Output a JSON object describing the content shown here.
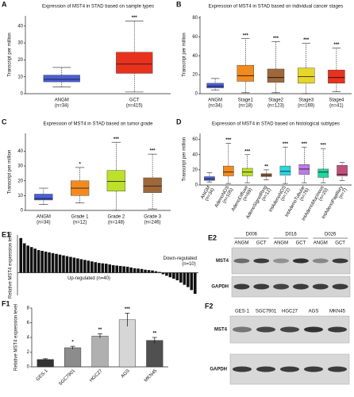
{
  "chart_data": [
    {
      "type": "box",
      "panel": "A",
      "title": "Expression of MST4 in STAD based on sample types",
      "ylabel": "Transcript per million",
      "categories": [
        "ANGM",
        "GCT"
      ],
      "category_notes": [
        "(n=34)",
        "(n=415)"
      ],
      "colors": [
        "#4a5fd6",
        "#e8321e"
      ],
      "boxes": [
        {
          "min": 4,
          "q1": 7,
          "median": 8.5,
          "q3": 11,
          "max": 15.5
        },
        {
          "min": 1,
          "q1": 12,
          "median": 17.5,
          "q3": 24.5,
          "max": 43
        }
      ],
      "significance": [
        null,
        "***"
      ],
      "ylim": [
        0,
        46
      ],
      "yticks": [
        0,
        10,
        20,
        30,
        40
      ]
    },
    {
      "type": "box",
      "panel": "B",
      "title": "Expression of MST4 in STAD based on individual cancer stages",
      "ylabel": "Transcript per million",
      "categories": [
        "ANGM",
        "Stage1",
        "Stage2",
        "Stage3",
        "Stage4"
      ],
      "category_notes": [
        "(n=34)",
        "(n=18)",
        "(n=123)",
        "(n=169)",
        "(n=41)"
      ],
      "colors": [
        "#4a5fd6",
        "#f28a1e",
        "#a0683a",
        "#e6d52a",
        "#e8321e"
      ],
      "boxes": [
        {
          "min": 4,
          "q1": 6,
          "median": 8,
          "q3": 11,
          "max": 16
        },
        {
          "min": 1,
          "q1": 13,
          "median": 19,
          "q3": 30,
          "max": 58
        },
        {
          "min": 1,
          "q1": 12,
          "median": 17,
          "q3": 26,
          "max": 55
        },
        {
          "min": 0,
          "q1": 11,
          "median": 18,
          "q3": 27,
          "max": 53
        },
        {
          "min": 2,
          "q1": 11,
          "median": 17,
          "q3": 25,
          "max": 48
        }
      ],
      "significance": [
        null,
        "***",
        "***",
        "***",
        "***"
      ],
      "ylim": [
        0,
        82
      ],
      "yticks": [
        0,
        20,
        40,
        60,
        80
      ]
    },
    {
      "type": "box",
      "panel": "C",
      "title": "Expression of MST4 in STAD based on tumor grade",
      "ylabel": "Transcript per million",
      "categories": [
        "ANGM",
        "Grade 1",
        "Grade 2",
        "Grade 3"
      ],
      "category_notes": [
        "(n=34)",
        "(n=12)",
        "(n=148)",
        "(n=246)"
      ],
      "colors": [
        "#4a5fd6",
        "#f28a1e",
        "#bde02a",
        "#a0683a"
      ],
      "boxes": [
        {
          "min": 4,
          "q1": 7,
          "median": 8,
          "q3": 11,
          "max": 15
        },
        {
          "min": 5,
          "q1": 10,
          "median": 15,
          "q3": 20,
          "max": 29
        },
        {
          "min": 0,
          "q1": 13,
          "median": 19.5,
          "q3": 27,
          "max": 46
        },
        {
          "min": 1,
          "q1": 12,
          "median": 16.5,
          "q3": 22,
          "max": 38
        }
      ],
      "significance": [
        null,
        "*",
        "***",
        "***"
      ],
      "ylim": [
        0,
        52
      ],
      "yticks": [
        0,
        10,
        20,
        30,
        40
      ]
    },
    {
      "type": "box",
      "panel": "D",
      "title": "Expression of MST4 in STAD based on histological subtypes",
      "ylabel": "Transcript per million",
      "rotated_labels": true,
      "categories": [
        "ANGM",
        "AdenoNOS",
        "AdenoDiffuse",
        "AdenoSignetRing",
        "IntAdenoNOS",
        "IntAdenoTubular",
        "IntAdenoMucinous",
        "IntAdenoPapillary"
      ],
      "category_notes": [
        "(n=34)",
        "(n=105)",
        "(n=69)",
        "(n=12)",
        "(n=72)",
        "(n=76)",
        "(n=20)",
        "(n=7)"
      ],
      "colors": [
        "#4a5fd6",
        "#f28a1e",
        "#bde02a",
        "#a0683a",
        "#2ad6e0",
        "#c07ae8",
        "#20d6a0",
        "#c0507a"
      ],
      "boxes": [
        {
          "min": 4,
          "q1": 6,
          "median": 8,
          "q3": 11,
          "max": 16
        },
        {
          "min": 2,
          "q1": 12,
          "median": 17,
          "q3": 25,
          "max": 55
        },
        {
          "min": 3,
          "q1": 12,
          "median": 17,
          "q3": 22,
          "max": 40
        },
        {
          "min": 7,
          "q1": 11,
          "median": 13,
          "q3": 15,
          "max": 20
        },
        {
          "min": 2,
          "q1": 13,
          "median": 18,
          "q3": 25,
          "max": 50
        },
        {
          "min": 3,
          "q1": 14,
          "median": 21,
          "q3": 27,
          "max": 50
        },
        {
          "min": 3,
          "q1": 10,
          "median": 17,
          "q3": 21,
          "max": 48
        },
        {
          "min": 6,
          "q1": 12,
          "median": 14,
          "q3": 26,
          "max": 30
        }
      ],
      "significance": [
        null,
        "***",
        "***",
        "**",
        "***",
        "***",
        "***",
        null
      ],
      "ylim": [
        0,
        68
      ],
      "yticks": [
        0,
        20,
        40,
        60
      ]
    },
    {
      "type": "waterfall",
      "panel": "E1",
      "ylabel": "Relative MST4 expression level",
      "color": "#111111",
      "values": [
        4.6,
        3.9,
        3.6,
        3.4,
        3.2,
        3.0,
        2.9,
        2.8,
        2.7,
        2.6,
        2.5,
        2.4,
        2.3,
        2.2,
        2.1,
        2.0,
        1.9,
        1.8,
        1.7,
        1.6,
        1.5,
        1.4,
        1.3,
        1.25,
        1.2,
        1.1,
        1.0,
        0.95,
        0.9,
        0.85,
        0.8,
        0.7,
        0.6,
        0.55,
        0.5,
        0.4,
        0.35,
        0.3,
        0.2,
        0.1,
        -0.2,
        -0.4,
        -0.6,
        -0.8,
        -1.0,
        -1.3,
        -1.6,
        -1.9,
        -2.3,
        -2.8
      ],
      "annotations": [
        "Down-regulated",
        "(n=10)",
        "Up-regulated (n=40)"
      ],
      "ylim": [
        -3,
        5
      ]
    },
    {
      "type": "bar",
      "panel": "F1",
      "ylabel": "Relative MST4 expression level",
      "categories": [
        "GES-1",
        "SGC7901",
        "HGC27",
        "AGS",
        "MKN45"
      ],
      "values": [
        1.0,
        2.6,
        4.2,
        6.4,
        3.6
      ],
      "errors": [
        0.1,
        0.2,
        0.3,
        0.9,
        0.4
      ],
      "colors": [
        "#333333",
        "#8c8c8c",
        "#b0b0b0",
        "#d6d6d6",
        "#505050"
      ],
      "significance": [
        null,
        "*",
        "**",
        "***",
        "**"
      ],
      "ylim": [
        0,
        8
      ],
      "yticks": [
        0,
        2,
        4,
        6,
        8
      ]
    }
  ],
  "blots": [
    {
      "panel": "E2",
      "groups": [
        "D006",
        "D016",
        "D026"
      ],
      "lanes": [
        "ANGM",
        "GCT",
        "ANGM",
        "GCT",
        "ANGM",
        "GCT"
      ],
      "rows": [
        "MST4",
        "GAPDH"
      ]
    },
    {
      "panel": "F2",
      "lanes": [
        "GES-1",
        "SGC7901",
        "HGC27",
        "AGS",
        "MKN45"
      ],
      "rows": [
        "MST4",
        "GAPDH"
      ]
    }
  ]
}
